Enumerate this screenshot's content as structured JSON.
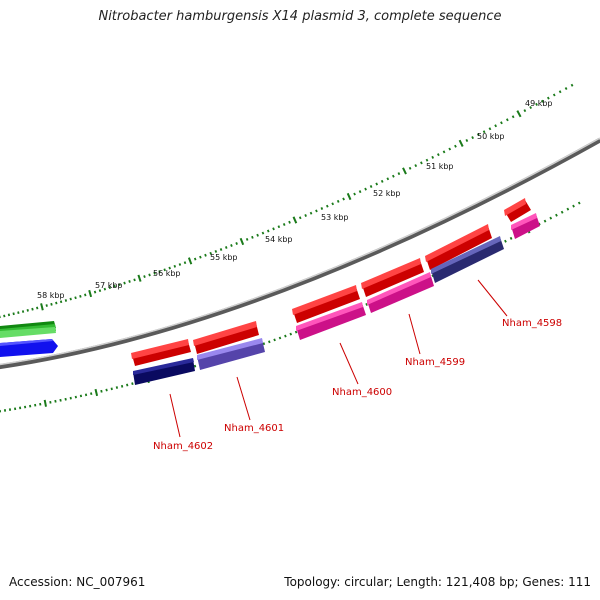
{
  "title": "Nitrobacter hamburgensis X14 plasmid 3, complete sequence",
  "accession": "Accession: NC_007961",
  "summary": "Topology: circular; Length: 121,408 bp; Genes: 111",
  "colors": {
    "backbone": "#8a8a8a",
    "ticks": "#1a7a1a",
    "gene_red": "#ee1111",
    "gene_pink": "#ee2299",
    "gene_navy": "#1a1a80",
    "gene_lavender": "#7766cc",
    "gene_green": "#33bb33",
    "gene_blue": "#1111ee",
    "label_red": "#cc0000"
  },
  "scale_labels": [
    "49 kbp",
    "50 kbp",
    "51 kbp",
    "52 kbp",
    "53 kbp",
    "54 kbp",
    "55 kbp",
    "56 kbp",
    "57 kbp",
    "58 kbp"
  ],
  "gene_labels": [
    "Nham_4598",
    "Nham_4599",
    "Nham_4600",
    "Nham_4601",
    "Nham_4602"
  ]
}
